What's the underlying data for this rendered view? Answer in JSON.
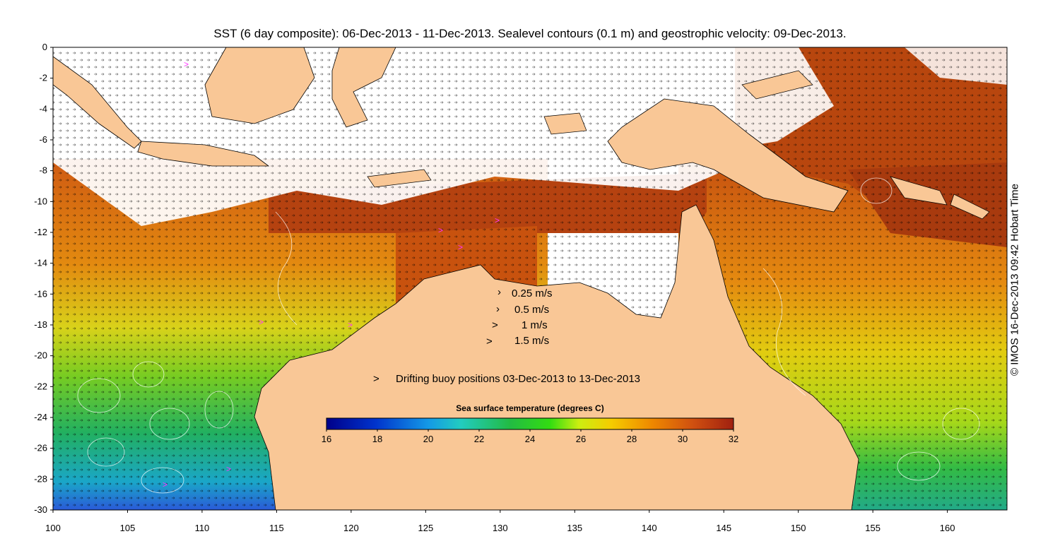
{
  "title": "SST (6 day composite): 06-Dec-2013 - 11-Dec-2013. Sealevel contours (0.1 m) and geostrophic velocity: 09-Dec-2013.",
  "credit": "© IMOS 16-Dec-2013 09:42 Hobart Time",
  "map": {
    "lon_range": [
      100,
      164
    ],
    "lat_range": [
      -30,
      0
    ],
    "lon_ticks": [
      "100",
      "105",
      "110",
      "115",
      "120",
      "125",
      "130",
      "135",
      "140",
      "145",
      "150",
      "155",
      "160"
    ],
    "lat_ticks": [
      "0",
      "-2",
      "-4",
      "-6",
      "-8",
      "-10",
      "-12",
      "-14",
      "-16",
      "-18",
      "-20",
      "-22",
      "-24",
      "-26",
      "-28",
      "-30"
    ],
    "land_color": "#f9c796"
  },
  "velocity_legend": {
    "items": [
      "0.25 m/s",
      "0.5 m/s",
      "1 m/s",
      "1.5 m/s"
    ]
  },
  "buoy_legend": {
    "symbol": ">",
    "label": "Drifting buoy positions 03-Dec-2013 to 13-Dec-2013",
    "color": "#ff33ff"
  },
  "colorbar": {
    "title": "Sea surface temperature (degrees C)",
    "ticks": [
      "16",
      "18",
      "20",
      "22",
      "24",
      "26",
      "28",
      "30",
      "32"
    ],
    "range": [
      16,
      32
    ]
  }
}
